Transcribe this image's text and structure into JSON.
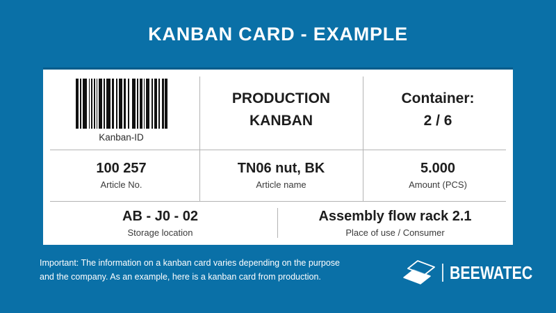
{
  "page": {
    "title": "KANBAN CARD - EXAMPLE"
  },
  "colors": {
    "background_blue": "#0a70a7",
    "card_white": "#ffffff",
    "divider_gray": "#b3b3b3",
    "text_dark": "#1d1d1d",
    "barcode_black": "#111111"
  },
  "card": {
    "row1": {
      "kanban_id": {
        "label": "Kanban-ID",
        "barcode_icon": "code128-barcode",
        "barcode_pattern": [
          4,
          2,
          2,
          2,
          6,
          3,
          1,
          2,
          2,
          2,
          2,
          2,
          1,
          2,
          5,
          2,
          2,
          2,
          6,
          2,
          3,
          3,
          2,
          2,
          5,
          2,
          3,
          3,
          2,
          4,
          5,
          2,
          2,
          2,
          4,
          2,
          1,
          2,
          5,
          3,
          2,
          2,
          4,
          2,
          2,
          3,
          3,
          1,
          4
        ]
      },
      "type": {
        "line1": "PRODUCTION",
        "line2": "KANBAN"
      },
      "container": {
        "line1": "Container:",
        "line2": "2 / 6"
      }
    },
    "row2": {
      "article_no": {
        "value": "100 257",
        "label": "Article No."
      },
      "article_name": {
        "value": "TN06 nut, BK",
        "label": "Article name"
      },
      "amount": {
        "value": "5.000",
        "label": "Amount (PCS)"
      }
    },
    "row3": {
      "storage_location": {
        "value": "AB - J0 - 02",
        "label": "Storage location"
      },
      "place_of_use": {
        "value": "Assembly flow rack 2.1",
        "label": "Place of use / Consumer"
      }
    }
  },
  "footer": {
    "note_line1": "Important: The information on a kanban card varies depending on the purpose",
    "note_line2": "and the company. As an example, here is a kanban card from production.",
    "brand": "BEEWATEC",
    "logo_icon": "beewatec-twin-plates"
  }
}
